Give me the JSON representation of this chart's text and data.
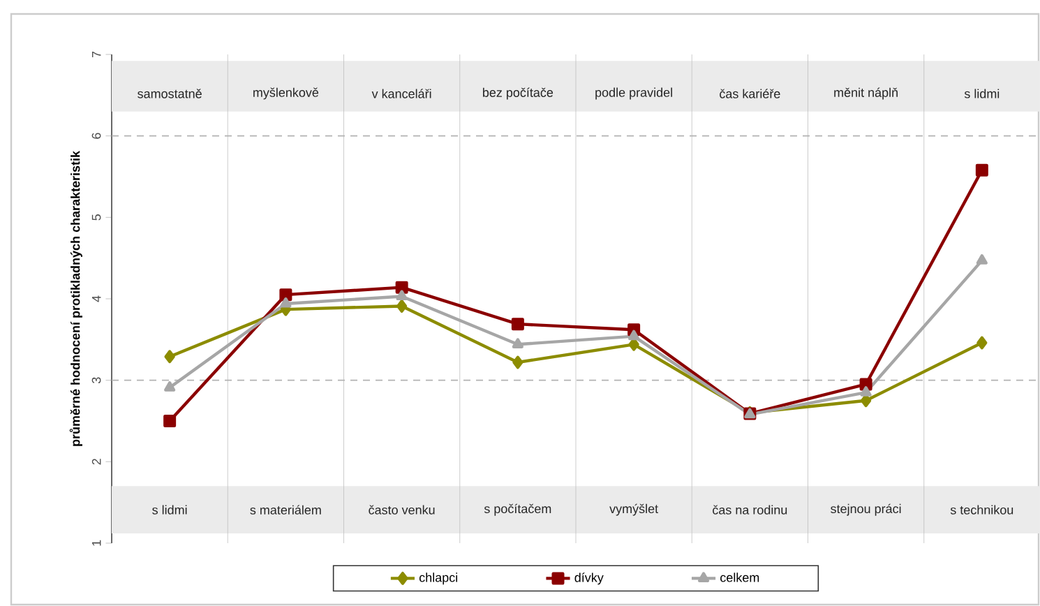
{
  "chart_data": {
    "type": "line",
    "ylabel": "průměrné hodnocení protikladných charakteristik",
    "categories": [
      "s lidmi",
      "s materiálem",
      "často venku",
      "s počítačem",
      "vymýšlet",
      "čas na rodinu",
      "stejnou práci",
      "s technikou"
    ],
    "annotations": [
      "samostatně",
      "myšlenkově",
      "v kanceláři",
      "bez počítače",
      "podle pravidel",
      "čas kariéře",
      "měnit náplň",
      "s lidmi"
    ],
    "series": [
      {
        "name": "chlapci",
        "color": "#8c8c00",
        "marker": "diamond",
        "values": [
          3.29,
          3.87,
          3.91,
          3.22,
          3.44,
          2.6,
          2.75,
          3.46
        ]
      },
      {
        "name": "dívky",
        "color": "#8b0000",
        "marker": "square",
        "values": [
          2.5,
          4.05,
          4.14,
          3.69,
          3.62,
          2.59,
          2.95,
          5.58
        ]
      },
      {
        "name": "celkem",
        "color": "#a6a6a6",
        "marker": "triangle",
        "values": [
          2.91,
          3.94,
          4.03,
          3.44,
          3.54,
          2.58,
          2.85,
          4.47
        ]
      }
    ],
    "ylim": [
      1,
      7
    ],
    "yticks": [
      1,
      2,
      3,
      4,
      5,
      6,
      7
    ],
    "ref_lines": [
      {
        "axis": "y",
        "value": 3,
        "line_style": "dashed"
      },
      {
        "axis": "y",
        "value": 6,
        "line_style": "dashed"
      }
    ],
    "bands": [
      {
        "axis": "y",
        "from": 1.12,
        "to": 1.7,
        "color": "#ebebeb"
      },
      {
        "axis": "y",
        "from": 6.3,
        "to": 6.92,
        "color": "#ebebeb"
      }
    ],
    "grid": "x",
    "legend": "bottom"
  }
}
